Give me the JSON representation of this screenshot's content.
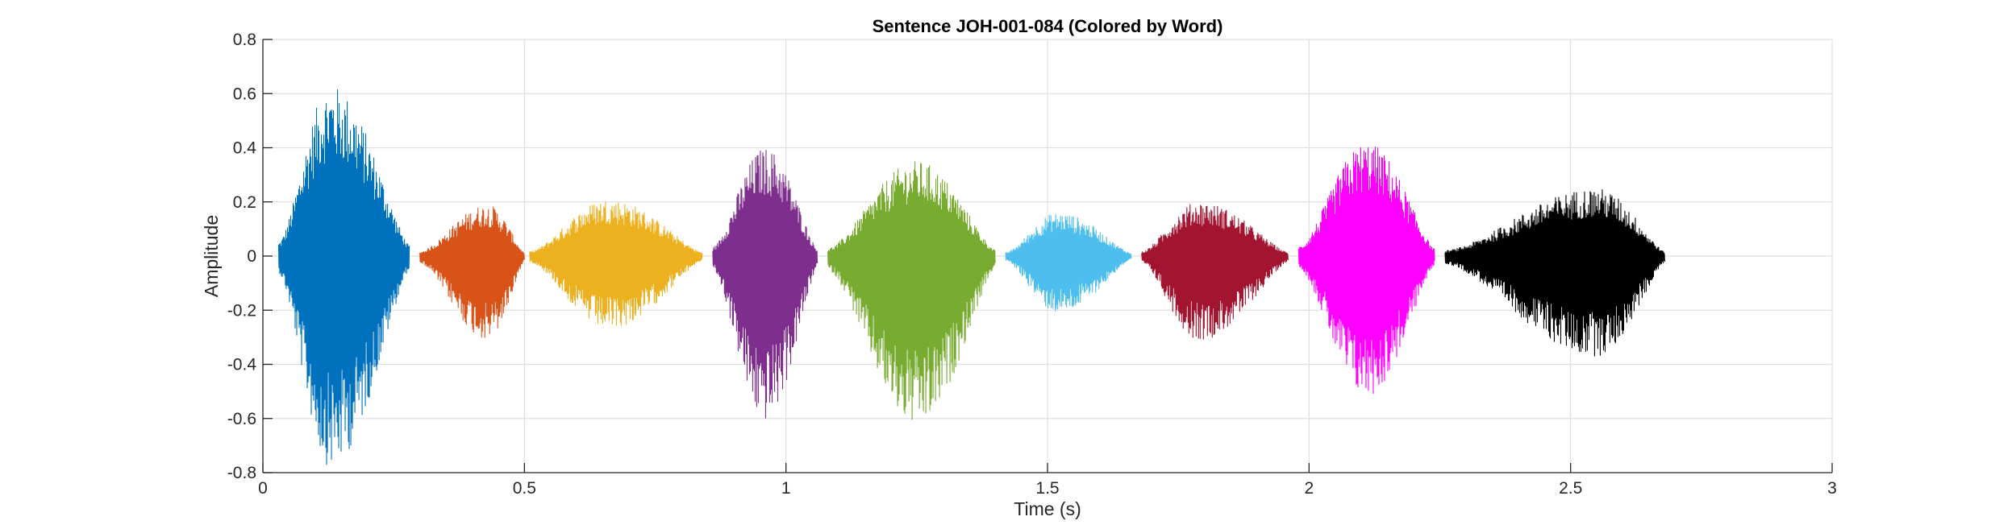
{
  "chart_data": {
    "type": "line",
    "title": "Sentence JOH-001-084 (Colored by Word)",
    "xlabel": "Time (s)",
    "ylabel": "Amplitude",
    "xlim": [
      0,
      3
    ],
    "ylim": [
      -0.8,
      0.8
    ],
    "xticks": [
      0,
      0.5,
      1,
      1.5,
      2,
      2.5,
      3
    ],
    "xtick_labels": [
      "0",
      "0.5",
      "1",
      "1.5",
      "2",
      "2.5",
      "3"
    ],
    "yticks": [
      -0.8,
      -0.6,
      -0.4,
      -0.2,
      0,
      0.2,
      0.4,
      0.6,
      0.8
    ],
    "ytick_labels": [
      "-0.8",
      "-0.6",
      "-0.4",
      "-0.2",
      "0",
      "0.2",
      "0.4",
      "0.6",
      "0.8"
    ],
    "grid": true,
    "legend": "none",
    "series": [
      {
        "color": "#0072BD",
        "segment": [
          0.03,
          0.28
        ],
        "peak_time": 0.13,
        "max": 0.63,
        "min": -0.78
      },
      {
        "color": "#D95319",
        "segment": [
          0.3,
          0.5
        ],
        "peak_time": 0.43,
        "max": 0.19,
        "min": -0.31
      },
      {
        "color": "#EDB120",
        "segment": [
          0.51,
          0.84
        ],
        "peak_time": 0.66,
        "max": 0.21,
        "min": -0.27
      },
      {
        "color": "#7E2F8E",
        "segment": [
          0.86,
          1.06
        ],
        "peak_time": 0.96,
        "max": 0.4,
        "min": -0.61
      },
      {
        "color": "#77AC30",
        "segment": [
          1.08,
          1.4
        ],
        "peak_time": 1.25,
        "max": 0.35,
        "min": -0.63
      },
      {
        "color": "#4DBEEE",
        "segment": [
          1.42,
          1.66
        ],
        "peak_time": 1.52,
        "max": 0.16,
        "min": -0.21
      },
      {
        "color": "#A2142F",
        "segment": [
          1.68,
          1.96
        ],
        "peak_time": 1.79,
        "max": 0.2,
        "min": -0.31
      },
      {
        "color": "#FF00FF",
        "segment": [
          1.98,
          2.24
        ],
        "peak_time": 2.11,
        "max": 0.42,
        "min": -0.52
      },
      {
        "color": "#000000",
        "segment": [
          2.26,
          2.68
        ],
        "peak_time": 2.55,
        "max": 0.25,
        "min": -0.37
      }
    ]
  }
}
